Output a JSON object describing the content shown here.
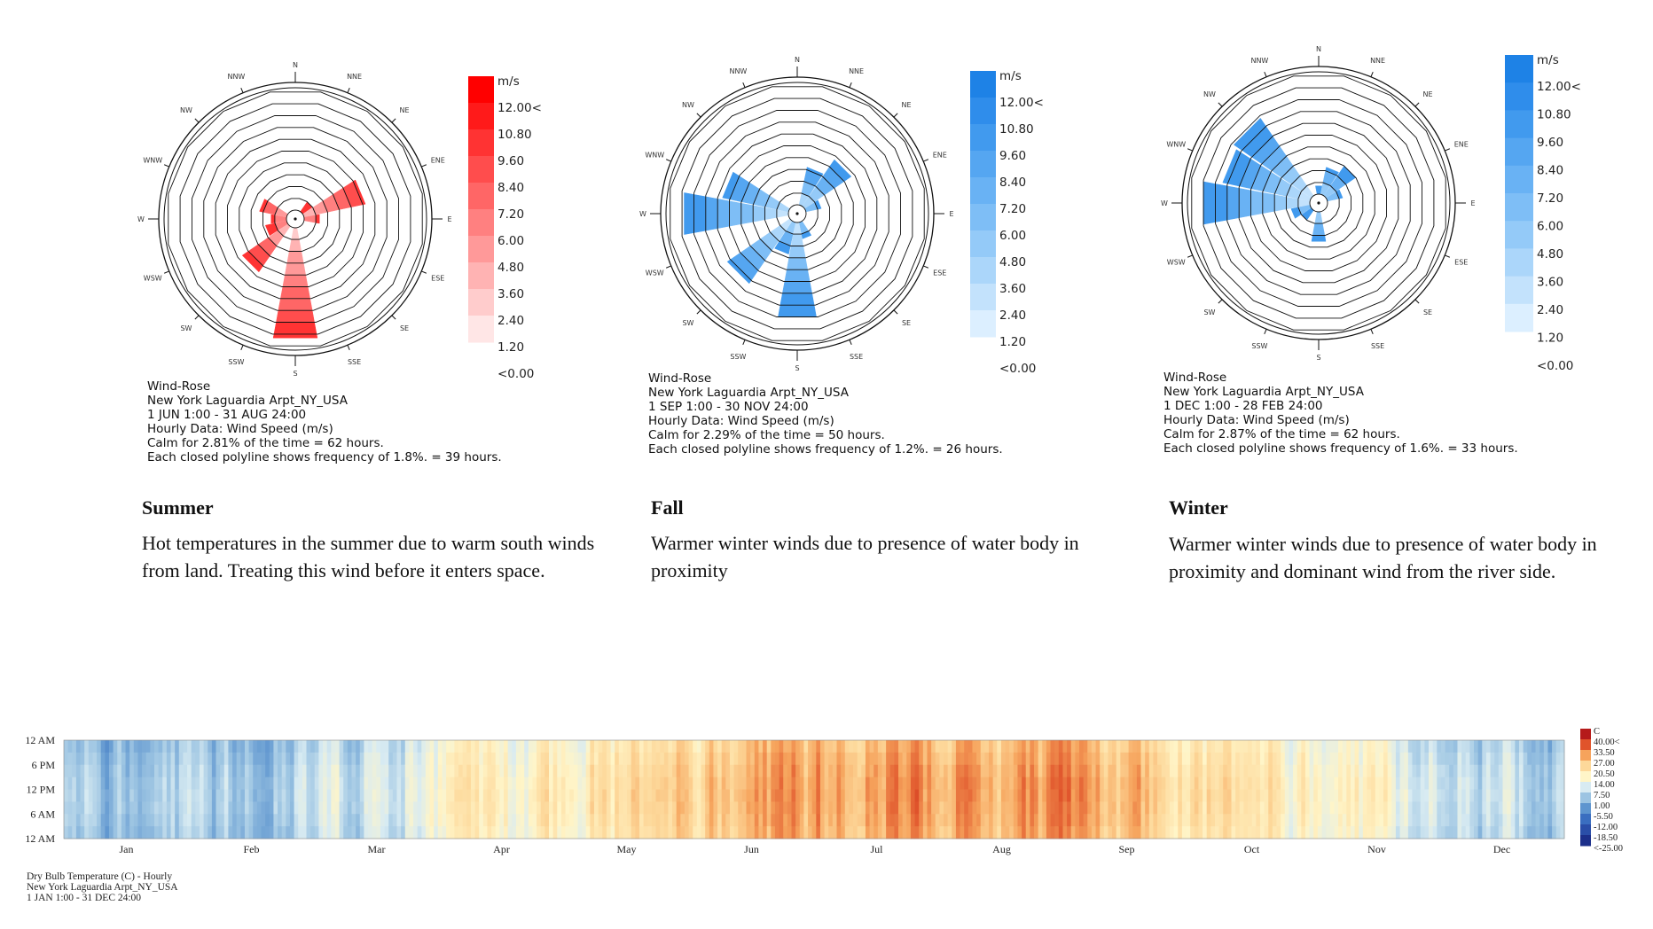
{
  "colors": {
    "summer_accent": "#ff0000",
    "fall_accent": "#1e82e6",
    "winter_accent": "#1e82e6"
  },
  "chart_data": [
    {
      "type": "wind-rose",
      "panel": "summer",
      "color_scheme": "red",
      "directions": [
        "N",
        "NNE",
        "NE",
        "ENE",
        "E",
        "ESE",
        "SE",
        "SSE",
        "S",
        "SSW",
        "SW",
        "WSW",
        "W",
        "WNW",
        "NW",
        "NNW"
      ],
      "frequency_rings": 10,
      "frequency_per_ring": "1.8%",
      "petal_lengths_rings": [
        0.0,
        0.0,
        1.0,
        5.2,
        1.3,
        0.0,
        0.0,
        0.0,
        9.3,
        0.0,
        4.6,
        1.8,
        1.3,
        2.3,
        0.0,
        0.0
      ],
      "legend_unit": "m/s",
      "legend_labels": [
        "12.00<",
        "10.80",
        "9.60",
        "8.40",
        "7.20",
        "6.00",
        "4.80",
        "3.60",
        "2.40",
        "1.20",
        "<0.00"
      ],
      "info_lines": [
        "Wind-Rose",
        "New York Laguardia Arpt_NY_USA",
        "1 JUN 1:00 - 31 AUG 24:00",
        "Hourly Data: Wind Speed (m/s)",
        "Calm for 2.81% of the time = 62 hours.",
        "Each closed polyline shows frequency of 1.8%. = 39 hours."
      ]
    },
    {
      "type": "wind-rose",
      "panel": "fall",
      "color_scheme": "blue",
      "directions": [
        "N",
        "NNE",
        "NE",
        "ENE",
        "E",
        "ESE",
        "SE",
        "SSE",
        "S",
        "SSW",
        "SW",
        "WSW",
        "W",
        "WNW",
        "NW",
        "NNW"
      ],
      "frequency_rings": 10,
      "frequency_per_ring": "1.2%",
      "petal_lengths_rings": [
        0.0,
        3.2,
        4.7,
        1.3,
        0.0,
        0.0,
        0.0,
        1.4,
        8.0,
        2.7,
        6.3,
        0.0,
        8.8,
        5.6,
        0.0,
        0.0
      ],
      "legend_unit": "m/s",
      "legend_labels": [
        "12.00<",
        "10.80",
        "9.60",
        "8.40",
        "7.20",
        "6.00",
        "4.80",
        "3.60",
        "2.40",
        "1.20",
        "<0.00"
      ],
      "info_lines": [
        "Wind-Rose",
        "New York Laguardia Arpt_NY_USA",
        "1 SEP 1:00 - 30 NOV 24:00",
        "Hourly Data: Wind Speed (m/s)",
        "Calm for 2.29% of the time = 50 hours.",
        "Each closed polyline shows frequency of 1.2%. = 26 hours."
      ]
    },
    {
      "type": "wind-rose",
      "panel": "winter",
      "color_scheme": "blue",
      "directions": [
        "N",
        "NNE",
        "NE",
        "ENE",
        "E",
        "ESE",
        "SE",
        "SSE",
        "S",
        "SSW",
        "SW",
        "WSW",
        "W",
        "WNW",
        "NW",
        "NNW"
      ],
      "frequency_rings": 10,
      "frequency_per_ring": "1.6%",
      "petal_lengths_rings": [
        0.7,
        2.3,
        3.0,
        1.3,
        0.0,
        0.0,
        0.0,
        0.0,
        2.5,
        0.0,
        1.0,
        1.6,
        9.0,
        7.4,
        7.8,
        0.0
      ],
      "legend_unit": "m/s",
      "legend_labels": [
        "12.00<",
        "10.80",
        "9.60",
        "8.40",
        "7.20",
        "6.00",
        "4.80",
        "3.60",
        "2.40",
        "1.20",
        "<0.00"
      ],
      "info_lines": [
        "Wind-Rose",
        "New York Laguardia Arpt_NY_USA",
        "1 DEC 1:00 - 28 FEB 24:00",
        "Hourly Data: Wind Speed (m/s)",
        "Calm for 2.87% of the time = 62 hours.",
        "Each closed polyline shows frequency of 1.6%. = 33 hours."
      ]
    },
    {
      "type": "heatmap",
      "x_tick_labels": [
        "Jan",
        "Feb",
        "Mar",
        "Apr",
        "May",
        "Jun",
        "Jul",
        "Aug",
        "Sep",
        "Oct",
        "Nov",
        "Dec"
      ],
      "y_tick_labels": [
        "12 AM",
        "6 PM",
        "12 PM",
        "6 AM",
        "12 AM"
      ],
      "legend_unit": "C",
      "legend_labels": [
        "40.00<",
        "33.50",
        "27.00",
        "20.50",
        "14.00",
        "7.50",
        "1.00",
        "-5.50",
        "-12.00",
        "-18.50",
        "<-25.00"
      ],
      "monthly_mean_temp_c": [
        0.5,
        1.5,
        6,
        12,
        17.5,
        23,
        26,
        25,
        21.5,
        15,
        9.5,
        3.5
      ],
      "info_lines": [
        "Dry Bulb Temperature (C) - Hourly",
        "New York Laguardia Arpt_NY_USA",
        "1 JAN 1:00 - 31 DEC 24:00"
      ]
    }
  ],
  "seasons": [
    {
      "title": "Summer",
      "text": "Hot temperatures in the summer due to warm south winds from land. Treating this wind before it enters space."
    },
    {
      "title": "Fall",
      "text": "Warmer winter winds due to presence of water body in proximity"
    },
    {
      "title": "Winter",
      "text": "Warmer winter winds due to presence of water body in proximity and dominant wind from the river side."
    }
  ]
}
